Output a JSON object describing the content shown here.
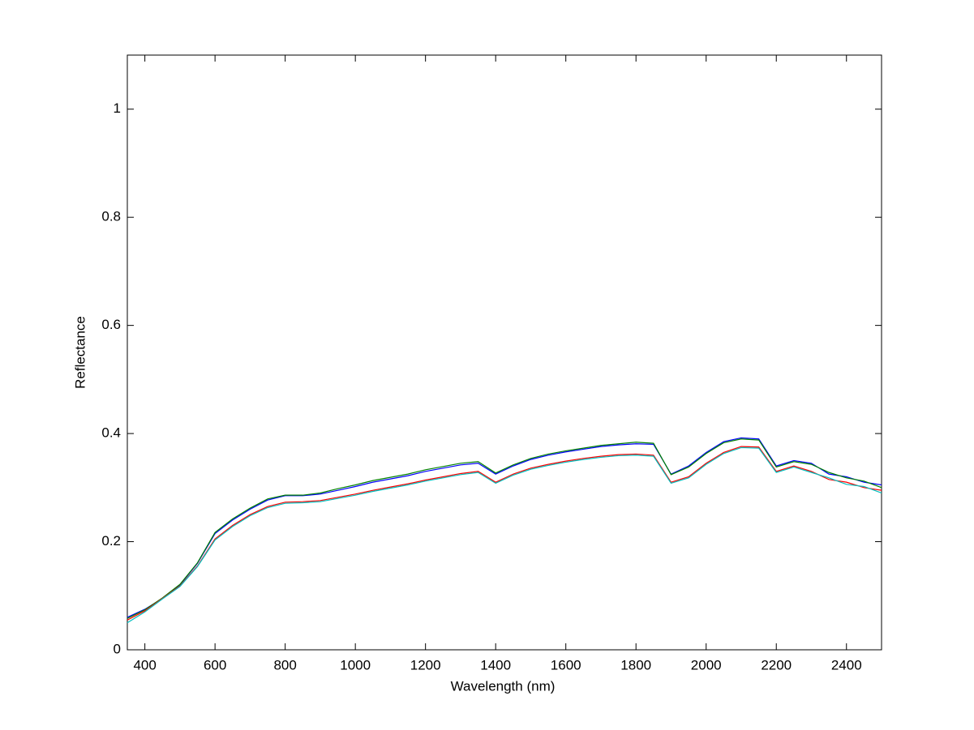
{
  "chart_data": {
    "type": "line",
    "x_label": "Wavelength (nm)",
    "y_label": "Reflectance",
    "x": [
      350,
      400,
      450,
      500,
      550,
      600,
      650,
      700,
      750,
      800,
      850,
      900,
      950,
      1000,
      1050,
      1100,
      1150,
      1200,
      1250,
      1300,
      1350,
      1400,
      1450,
      1500,
      1550,
      1600,
      1650,
      1700,
      1750,
      1800,
      1850,
      1900,
      1950,
      2000,
      2050,
      2100,
      2150,
      2200,
      2250,
      2300,
      2350,
      2400,
      2450,
      2500
    ],
    "series": [
      {
        "color": "#0000ff",
        "values": [
          0.06,
          0.075,
          0.095,
          0.12,
          0.16,
          0.215,
          0.24,
          0.26,
          0.277,
          0.285,
          0.285,
          0.288,
          0.295,
          0.302,
          0.31,
          0.316,
          0.322,
          0.33,
          0.336,
          0.342,
          0.345,
          0.325,
          0.34,
          0.352,
          0.36,
          0.366,
          0.371,
          0.376,
          0.379,
          0.381,
          0.38,
          0.325,
          0.34,
          0.365,
          0.385,
          0.392,
          0.39,
          0.34,
          0.35,
          0.345,
          0.325,
          0.32,
          0.31,
          0.305
        ]
      },
      {
        "color": "#008000",
        "values": [
          0.058,
          0.074,
          0.096,
          0.121,
          0.161,
          0.217,
          0.242,
          0.262,
          0.279,
          0.286,
          0.286,
          0.29,
          0.298,
          0.305,
          0.313,
          0.319,
          0.325,
          0.333,
          0.339,
          0.345,
          0.348,
          0.327,
          0.342,
          0.354,
          0.362,
          0.368,
          0.373,
          0.378,
          0.381,
          0.384,
          0.382,
          0.324,
          0.338,
          0.363,
          0.383,
          0.39,
          0.388,
          0.338,
          0.348,
          0.343,
          0.328,
          0.318,
          0.312,
          0.3
        ]
      },
      {
        "color": "#ff0000",
        "values": [
          0.055,
          0.072,
          0.095,
          0.118,
          0.155,
          0.205,
          0.23,
          0.25,
          0.265,
          0.273,
          0.274,
          0.276,
          0.282,
          0.288,
          0.295,
          0.301,
          0.307,
          0.314,
          0.32,
          0.326,
          0.33,
          0.31,
          0.325,
          0.336,
          0.343,
          0.349,
          0.354,
          0.358,
          0.361,
          0.362,
          0.36,
          0.31,
          0.32,
          0.345,
          0.365,
          0.376,
          0.375,
          0.33,
          0.34,
          0.33,
          0.315,
          0.31,
          0.3,
          0.295
        ]
      },
      {
        "color": "#00bfbf",
        "values": [
          0.05,
          0.07,
          0.094,
          0.117,
          0.154,
          0.203,
          0.228,
          0.248,
          0.263,
          0.271,
          0.272,
          0.274,
          0.28,
          0.286,
          0.293,
          0.299,
          0.305,
          0.312,
          0.318,
          0.324,
          0.328,
          0.308,
          0.323,
          0.334,
          0.341,
          0.347,
          0.352,
          0.356,
          0.359,
          0.36,
          0.358,
          0.308,
          0.318,
          0.343,
          0.363,
          0.374,
          0.373,
          0.328,
          0.338,
          0.328,
          0.318,
          0.306,
          0.302,
          0.29
        ]
      }
    ],
    "xlim": [
      350,
      2500
    ],
    "xticks": [
      400,
      600,
      800,
      1000,
      1200,
      1400,
      1600,
      1800,
      2000,
      2200,
      2400
    ],
    "ylim": [
      0,
      1.1
    ],
    "yticks": [
      0,
      0.2,
      0.4,
      0.6,
      0.8,
      1
    ],
    "grid": false
  }
}
